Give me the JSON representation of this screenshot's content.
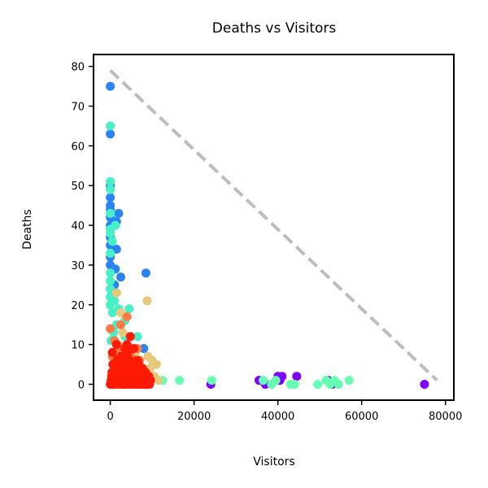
{
  "chart_data": {
    "type": "scatter",
    "title": "Deaths vs Visitors",
    "xlabel": "Visitors",
    "ylabel": "Deaths",
    "xlim": [
      -4000,
      82000
    ],
    "ylim": [
      -4,
      83
    ],
    "xticks": [
      0,
      20000,
      40000,
      60000,
      80000
    ],
    "yticks": [
      0,
      10,
      20,
      30,
      40,
      50,
      60,
      70,
      80
    ],
    "grid": false,
    "legend": "none",
    "reference_line": {
      "style": "dashed",
      "color": "#bdbdbd",
      "from": [
        0,
        79
      ],
      "to": [
        78000,
        1
      ]
    },
    "colormap": "rainbow",
    "series": [
      {
        "color": "#7f00ff",
        "points": [
          [
            75000,
            0
          ],
          [
            24000,
            0
          ],
          [
            37000,
            0
          ],
          [
            40000,
            2
          ],
          [
            41000,
            2
          ],
          [
            44500,
            2
          ],
          [
            52000,
            1
          ],
          [
            53000,
            0
          ],
          [
            35500,
            1
          ],
          [
            40500,
            1
          ]
        ]
      },
      {
        "color": "#66ffb2",
        "points": [
          [
            16500,
            1
          ],
          [
            24200,
            1
          ],
          [
            36500,
            1
          ],
          [
            38500,
            0
          ],
          [
            39500,
            1
          ],
          [
            43000,
            0
          ],
          [
            44000,
            0
          ],
          [
            49500,
            0
          ],
          [
            51500,
            1
          ],
          [
            52500,
            0
          ],
          [
            53500,
            1
          ],
          [
            54500,
            0
          ],
          [
            57000,
            1
          ],
          [
            12500,
            1
          ]
        ]
      },
      {
        "color": "#2a84f0",
        "points": [
          [
            0,
            75
          ],
          [
            0,
            63
          ],
          [
            0,
            50
          ],
          [
            0,
            47
          ],
          [
            0,
            45
          ],
          [
            0,
            44
          ],
          [
            0,
            42
          ],
          [
            0,
            40
          ],
          [
            0,
            37
          ],
          [
            0,
            35
          ],
          [
            1500,
            41
          ],
          [
            2000,
            43
          ],
          [
            1500,
            34
          ],
          [
            8500,
            28
          ],
          [
            1200,
            29
          ],
          [
            2500,
            27
          ],
          [
            8000,
            9
          ],
          [
            1000,
            25
          ],
          [
            0,
            32
          ],
          [
            0,
            30
          ]
        ]
      },
      {
        "color": "#48f0c8",
        "points": [
          [
            0,
            65
          ],
          [
            0,
            51
          ],
          [
            0,
            49
          ],
          [
            0,
            43
          ],
          [
            0,
            39
          ],
          [
            0,
            38
          ],
          [
            0,
            28
          ],
          [
            1200,
            40
          ],
          [
            500,
            36
          ],
          [
            0,
            33
          ],
          [
            0,
            26
          ],
          [
            0,
            22
          ],
          [
            0,
            20
          ],
          [
            500,
            18
          ],
          [
            1000,
            21
          ],
          [
            2000,
            19
          ],
          [
            4500,
            19
          ],
          [
            3500,
            16
          ],
          [
            6500,
            12
          ],
          [
            3500,
            12
          ],
          [
            1500,
            15
          ],
          [
            200,
            11
          ],
          [
            800,
            13
          ],
          [
            0,
            24
          ]
        ]
      },
      {
        "color": "#e6c97a",
        "points": [
          [
            8800,
            21
          ],
          [
            1500,
            23
          ],
          [
            2500,
            18
          ],
          [
            9000,
            7
          ],
          [
            10000,
            6
          ],
          [
            11000,
            5
          ],
          [
            9500,
            4
          ],
          [
            8000,
            3
          ],
          [
            10500,
            2
          ],
          [
            9000,
            0
          ],
          [
            11500,
            1
          ],
          [
            6500,
            5
          ],
          [
            6000,
            8
          ],
          [
            3000,
            13
          ],
          [
            2000,
            10
          ]
        ]
      },
      {
        "color": "#ff7a45",
        "points": [
          [
            0,
            14
          ],
          [
            1000,
            11
          ],
          [
            2000,
            9
          ],
          [
            3000,
            8
          ],
          [
            4000,
            17
          ],
          [
            2500,
            15
          ],
          [
            3500,
            6
          ],
          [
            4500,
            4
          ],
          [
            5500,
            3
          ],
          [
            6000,
            2
          ],
          [
            7000,
            6
          ],
          [
            1500,
            5
          ],
          [
            500,
            7
          ],
          [
            2000,
            2
          ],
          [
            3000,
            3
          ],
          [
            1000,
            1
          ],
          [
            4000,
            0
          ],
          [
            5000,
            7
          ],
          [
            8500,
            1
          ],
          [
            7500,
            4
          ],
          [
            6500,
            9
          ],
          [
            2500,
            6
          ]
        ]
      },
      {
        "color": "#ff1a05",
        "points": [
          [
            0,
            0
          ],
          [
            200,
            1
          ],
          [
            400,
            3
          ],
          [
            600,
            5
          ],
          [
            800,
            2
          ],
          [
            1000,
            0
          ],
          [
            1200,
            4
          ],
          [
            1400,
            1
          ],
          [
            1600,
            6
          ],
          [
            1800,
            2
          ],
          [
            2000,
            0
          ],
          [
            2200,
            3
          ],
          [
            2400,
            1
          ],
          [
            2600,
            5
          ],
          [
            2800,
            0
          ],
          [
            3000,
            2
          ],
          [
            3200,
            4
          ],
          [
            3400,
            1
          ],
          [
            3600,
            0
          ],
          [
            3800,
            3
          ],
          [
            4000,
            10
          ],
          [
            4200,
            8
          ],
          [
            4400,
            2
          ],
          [
            4600,
            0
          ],
          [
            4800,
            12
          ],
          [
            5000,
            1
          ],
          [
            5200,
            3
          ],
          [
            5400,
            0
          ],
          [
            5600,
            9
          ],
          [
            5800,
            2
          ],
          [
            6000,
            4
          ],
          [
            6200,
            1
          ],
          [
            6400,
            0
          ],
          [
            6600,
            2
          ],
          [
            6800,
            5
          ],
          [
            7000,
            0
          ],
          [
            7200,
            1
          ],
          [
            7400,
            3
          ],
          [
            7600,
            0
          ],
          [
            7800,
            2
          ],
          [
            8000,
            1
          ],
          [
            8200,
            0
          ],
          [
            8400,
            3
          ],
          [
            8600,
            1
          ],
          [
            8800,
            0
          ],
          [
            9000,
            1
          ],
          [
            9200,
            2
          ],
          [
            9400,
            0
          ],
          [
            9600,
            1
          ],
          [
            500,
            8
          ],
          [
            1500,
            10
          ],
          [
            2500,
            7
          ],
          [
            3500,
            9
          ],
          [
            300,
            2
          ],
          [
            700,
            0
          ],
          [
            1100,
            3
          ],
          [
            1900,
            1
          ],
          [
            2300,
            6
          ],
          [
            2700,
            2
          ],
          [
            3100,
            0
          ],
          [
            3300,
            7
          ],
          [
            3700,
            5
          ],
          [
            4300,
            4
          ],
          [
            4700,
            6
          ],
          [
            5300,
            5
          ],
          [
            5700,
            0
          ],
          [
            6100,
            3
          ],
          [
            6500,
            6
          ],
          [
            6900,
            2
          ],
          [
            7300,
            0
          ],
          [
            7700,
            4
          ],
          [
            8100,
            2
          ],
          [
            8500,
            0
          ],
          [
            8900,
            2
          ]
        ]
      }
    ]
  }
}
